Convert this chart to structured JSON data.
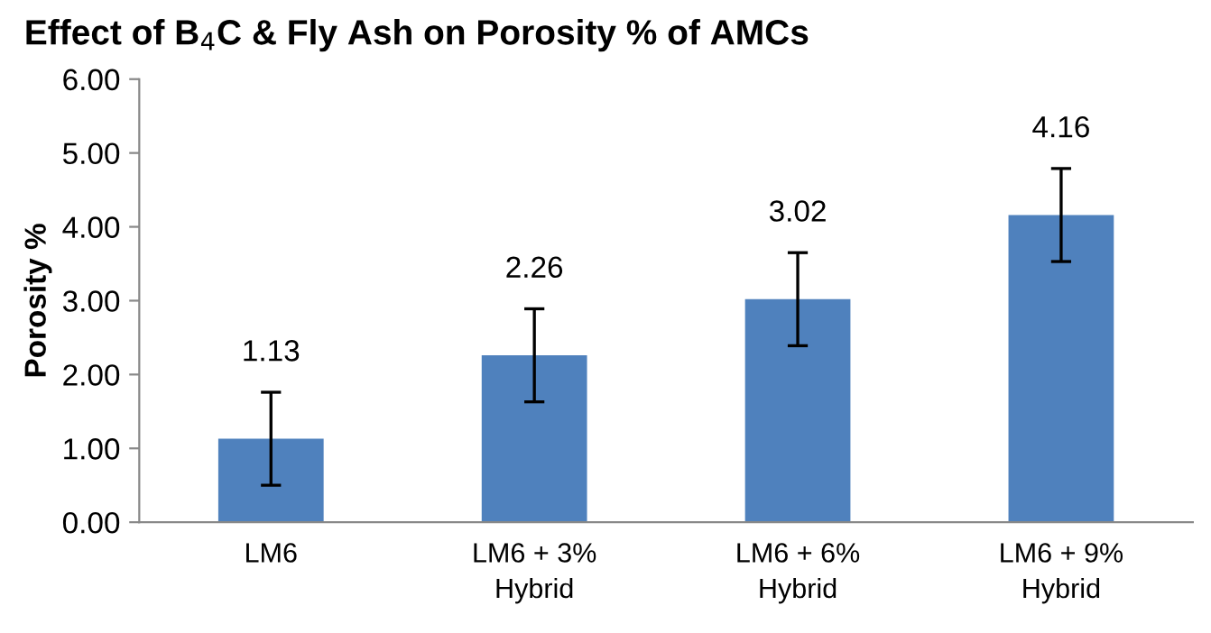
{
  "chart_data": {
    "type": "bar",
    "title": "Effect of B$_{4}$C & Fly Ash on Porosity % of AMCs",
    "ylabel": "Porosity %",
    "categories": [
      "LM6",
      "LM6 + 3%\nHybrid",
      "LM6 + 6%\nHybrid",
      "LM6 + 9%\nHybrid"
    ],
    "values": [
      1.13,
      2.26,
      3.02,
      4.16
    ],
    "errors": [
      0.63,
      0.63,
      0.63,
      0.63
    ],
    "color": "#4f81bd",
    "ylim": [
      0,
      6
    ],
    "yticks": [
      {
        "value": 0,
        "label": "0.00"
      },
      {
        "value": 1,
        "label": "1.00"
      },
      {
        "value": 2,
        "label": "2.00"
      },
      {
        "value": 3,
        "label": "3.00"
      },
      {
        "value": 4,
        "label": "4.00"
      },
      {
        "value": 5,
        "label": "5.00"
      },
      {
        "value": 6,
        "label": "6.00"
      }
    ],
    "data_labels": true,
    "grid": false
  }
}
